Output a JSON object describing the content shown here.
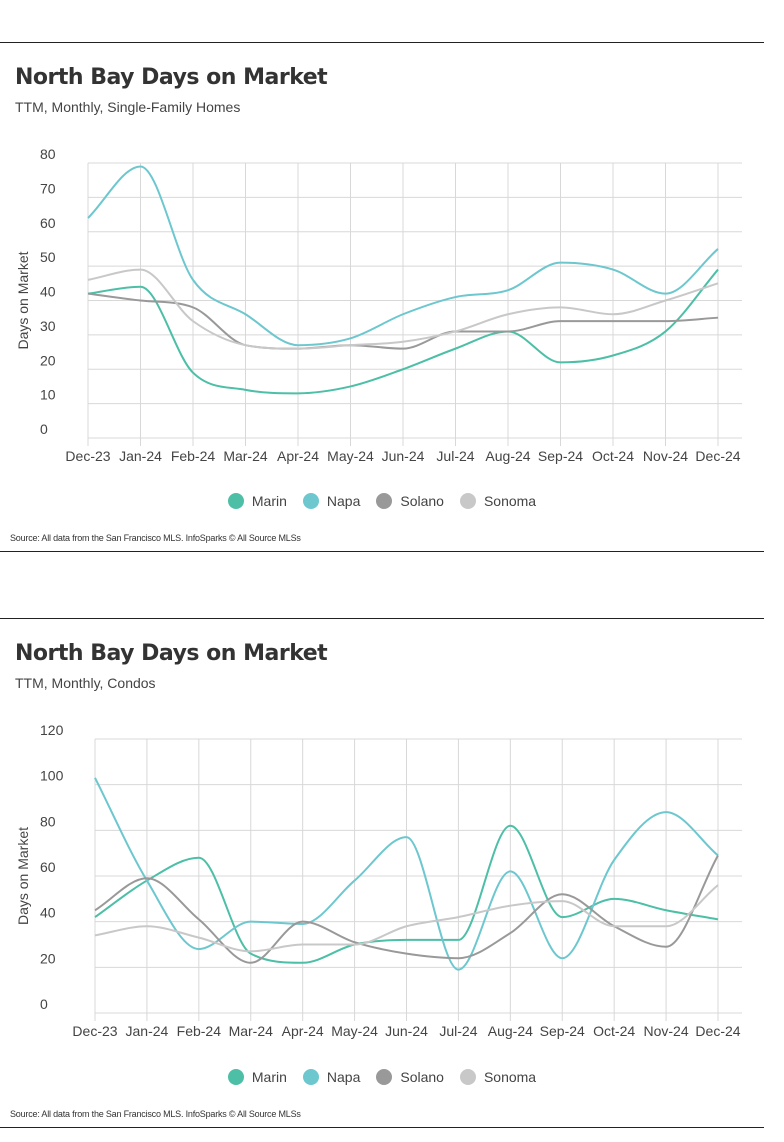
{
  "source_text": "Source:  All data from the San Francisco MLS. InfoSparks © All Source MLSs",
  "chart_data": [
    {
      "type": "line",
      "title": "North Bay Days on Market",
      "subtitle": "TTM, Monthly, Single-Family Homes",
      "ylabel": "Days on Market",
      "xlabel": "",
      "ylim": [
        0,
        80
      ],
      "yticks": [
        0,
        10,
        20,
        30,
        40,
        50,
        60,
        70,
        80
      ],
      "categories": [
        "Dec-23",
        "Jan-24",
        "Feb-24",
        "Mar-24",
        "Apr-24",
        "May-24",
        "Jun-24",
        "Jul-24",
        "Aug-24",
        "Sep-24",
        "Oct-24",
        "Nov-24",
        "Dec-24"
      ],
      "grid": true,
      "legend_position": "bottom",
      "series": [
        {
          "name": "Marin",
          "color": "#4cbfa6",
          "values": [
            42,
            44,
            19,
            14,
            13,
            15,
            20,
            26,
            31,
            22,
            24,
            31,
            49
          ]
        },
        {
          "name": "Napa",
          "color": "#6cc7cf",
          "values": [
            64,
            79,
            46,
            36,
            27,
            29,
            36,
            41,
            43,
            51,
            49,
            42,
            55
          ]
        },
        {
          "name": "Solano",
          "color": "#999999",
          "values": [
            42,
            40,
            38,
            27,
            26,
            27,
            26,
            31,
            31,
            34,
            34,
            34,
            35
          ]
        },
        {
          "name": "Sonoma",
          "color": "#c8c8c8",
          "values": [
            46,
            49,
            34,
            27,
            26,
            27,
            28,
            31,
            36,
            38,
            36,
            40,
            45
          ]
        }
      ]
    },
    {
      "type": "line",
      "title": "North Bay Days on Market",
      "subtitle": "TTM, Monthly, Condos",
      "ylabel": "Days on Market",
      "xlabel": "",
      "ylim": [
        0,
        120
      ],
      "yticks": [
        0,
        20,
        40,
        60,
        80,
        100,
        120
      ],
      "categories": [
        "Dec-23",
        "Jan-24",
        "Feb-24",
        "Mar-24",
        "Apr-24",
        "May-24",
        "Jun-24",
        "Jul-24",
        "Aug-24",
        "Sep-24",
        "Oct-24",
        "Nov-24",
        "Dec-24"
      ],
      "grid": true,
      "legend_position": "bottom",
      "series": [
        {
          "name": "Marin",
          "color": "#4cbfa6",
          "values": [
            42,
            58,
            68,
            26,
            22,
            30,
            32,
            32,
            82,
            42,
            50,
            45,
            41
          ]
        },
        {
          "name": "Napa",
          "color": "#6cc7cf",
          "values": [
            103,
            58,
            28,
            40,
            39,
            58,
            77,
            19,
            62,
            24,
            67,
            88,
            69
          ]
        },
        {
          "name": "Solano",
          "color": "#999999",
          "values": [
            45,
            59,
            41,
            22,
            40,
            31,
            26,
            24,
            35,
            52,
            38,
            29,
            69
          ]
        },
        {
          "name": "Sonoma",
          "color": "#c8c8c8",
          "values": [
            34,
            38,
            33,
            27,
            30,
            30,
            38,
            42,
            47,
            49,
            38,
            38,
            56
          ]
        }
      ]
    }
  ]
}
